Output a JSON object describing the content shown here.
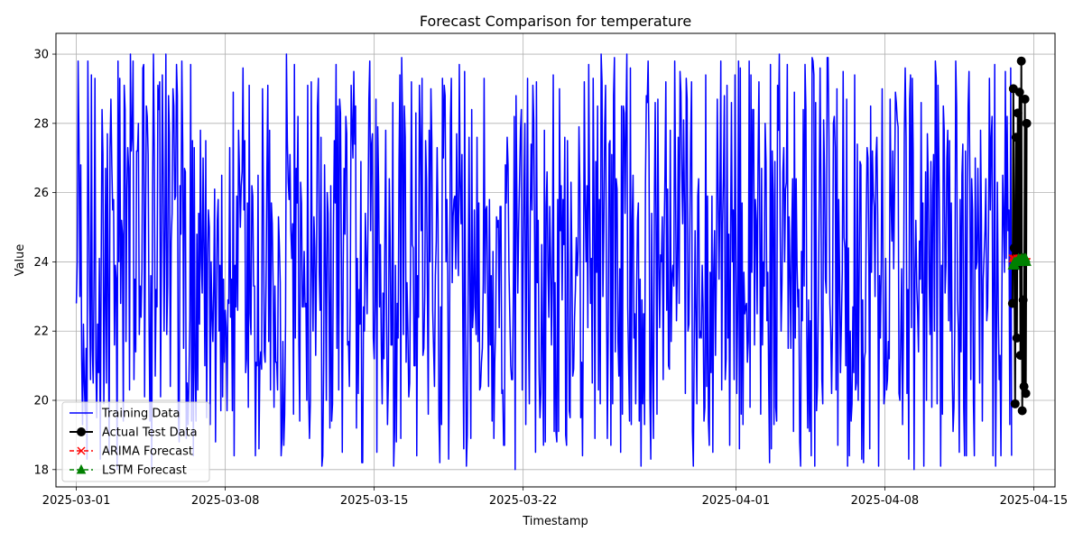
{
  "chart_data": {
    "type": "line",
    "title": "Forecast Comparison for temperature",
    "xlabel": "Timestamp",
    "ylabel": "Value",
    "xlim": [
      "2025-02-28T01:00",
      "2025-04-16T00:00"
    ],
    "ylim": [
      17.5,
      30.6
    ],
    "grid": true,
    "legend_position": "lower-left",
    "x_ticks": [
      "2025-03-01",
      "2025-03-08",
      "2025-03-15",
      "2025-03-22",
      "2025-04-01",
      "2025-04-08",
      "2025-04-15"
    ],
    "y_ticks": [
      18,
      20,
      22,
      24,
      26,
      28,
      30
    ],
    "training_sampling": "hourly",
    "series": [
      {
        "name": "Training Data",
        "color": "#0000ff",
        "marker": "none",
        "linestyle": "solid",
        "start": "2025-03-01T00:00",
        "end": "2025-04-13T23:00",
        "first_values": [
          22.8,
          24.0,
          29.8,
          27.5,
          23.0,
          26.8,
          21.2,
          19.3,
          22.2,
          20.5,
          19.6,
          21.5,
          18.3,
          29.8,
          26.0,
          22.8,
          20.6,
          29.4,
          21.5,
          20.5,
          23.8,
          29.3,
          21.2,
          19.5
        ],
        "value_range": [
          18.0,
          30.0
        ]
      },
      {
        "name": "Actual Test Data",
        "color": "#000000",
        "marker": "circle",
        "linestyle": "solid",
        "x": [
          "2025-04-14T00:00",
          "2025-04-14T01:00",
          "2025-04-14T02:00",
          "2025-04-14T03:00",
          "2025-04-14T04:00",
          "2025-04-14T05:00",
          "2025-04-14T06:00",
          "2025-04-14T07:00",
          "2025-04-14T08:00",
          "2025-04-14T09:00",
          "2025-04-14T10:00",
          "2025-04-14T11:00",
          "2025-04-14T12:00",
          "2025-04-14T13:00",
          "2025-04-14T14:00",
          "2025-04-14T15:00",
          "2025-04-14T16:00"
        ],
        "values": [
          22.8,
          29.0,
          24.4,
          19.9,
          27.6,
          21.8,
          28.3,
          23.9,
          28.9,
          21.3,
          29.8,
          19.7,
          22.9,
          20.4,
          28.7,
          20.2,
          28.0
        ]
      },
      {
        "name": "ARIMA Forecast",
        "color": "#ff0000",
        "marker": "x",
        "linestyle": "dashed",
        "x": [
          "2025-04-14T00:00",
          "2025-04-14T01:00",
          "2025-04-14T02:00",
          "2025-04-14T03:00",
          "2025-04-14T04:00",
          "2025-04-14T05:00",
          "2025-04-14T06:00",
          "2025-04-14T07:00",
          "2025-04-14T08:00",
          "2025-04-14T09:00",
          "2025-04-14T10:00",
          "2025-04-14T11:00",
          "2025-04-14T12:00",
          "2025-04-14T13:00",
          "2025-04-14T14:00",
          "2025-04-14T15:00",
          "2025-04-14T16:00"
        ],
        "values": [
          24.1,
          24.0,
          24.1,
          24.0,
          24.0,
          24.1,
          24.0,
          24.0,
          24.1,
          24.0,
          24.0,
          24.0,
          24.1,
          24.0,
          24.0,
          24.0,
          24.0
        ]
      },
      {
        "name": "LSTM Forecast",
        "color": "#008000",
        "marker": "triangle",
        "linestyle": "dashed",
        "x": [
          "2025-04-14T00:00",
          "2025-04-14T01:00",
          "2025-04-14T02:00",
          "2025-04-14T03:00",
          "2025-04-14T04:00",
          "2025-04-14T05:00",
          "2025-04-14T06:00",
          "2025-04-14T07:00",
          "2025-04-14T08:00",
          "2025-04-14T09:00",
          "2025-04-14T10:00",
          "2025-04-14T11:00",
          "2025-04-14T12:00",
          "2025-04-14T13:00",
          "2025-04-14T14:00",
          "2025-04-14T15:00",
          "2025-04-14T16:00"
        ],
        "values": [
          23.9,
          23.9,
          24.0,
          23.9,
          24.0,
          24.0,
          24.0,
          24.1,
          24.0,
          24.0,
          24.1,
          24.0,
          24.1,
          24.0,
          24.1,
          24.1,
          24.0
        ]
      }
    ]
  }
}
